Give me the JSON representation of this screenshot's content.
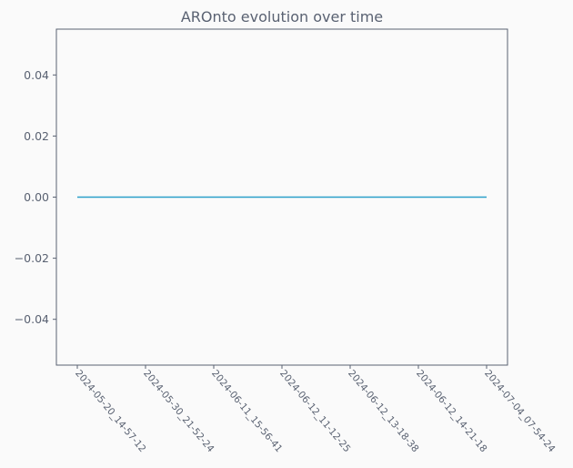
{
  "chart_data": {
    "type": "line",
    "title": "AROnto evolution over time",
    "xlabel": "",
    "ylabel": "",
    "x": [
      "2024-05-20_14-57-12",
      "2024-05-30_21-52-24",
      "2024-06-11_15-56-41",
      "2024-06-12_11-12-25",
      "2024-06-12_13-18-38",
      "2024-06-12_14-21-18",
      "2024-07-04_07-54-24"
    ],
    "series": [
      {
        "values": [
          0,
          0,
          0,
          0,
          0,
          0,
          0
        ],
        "color": "#2a9fc9"
      }
    ],
    "ylim": [
      -0.055,
      0.055
    ],
    "yticks": [
      0.04,
      0.02,
      0.0,
      -0.02,
      -0.04
    ],
    "ytick_labels": [
      "0.04",
      "0.02",
      "0.00",
      "−0.02",
      "−0.04"
    ],
    "grid": false,
    "legend": "none"
  }
}
